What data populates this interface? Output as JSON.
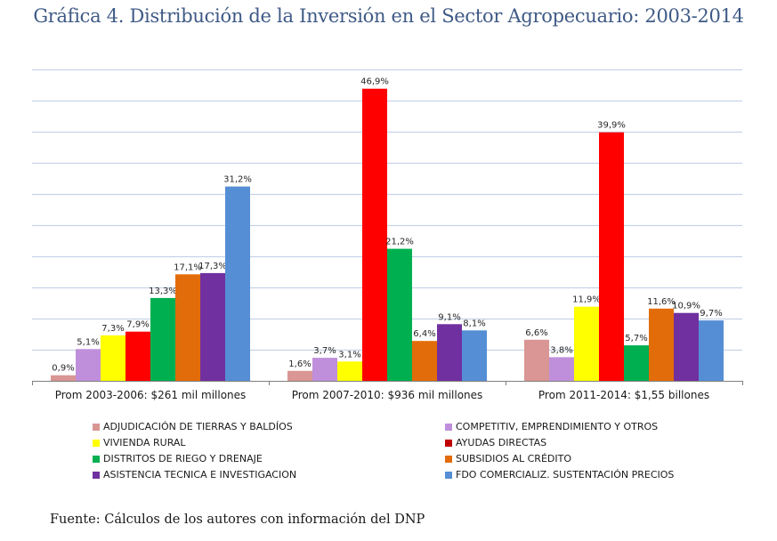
{
  "title": "Gráfica 4. Distribución de la Inversión en el Sector Agropecuario: 2003-2014",
  "source": "Fuente: Cálculos de los autores con información del DNP",
  "chart_data": {
    "type": "bar",
    "title": "Gráfica 4. Distribución de la Inversión en el Sector Agropecuario: 2003-2014",
    "xlabel": "",
    "ylabel": "",
    "ylim": [
      0,
      50
    ],
    "ytick_step": 5,
    "y_tick_labels_visible": false,
    "grid": true,
    "legend_position": "bottom",
    "categories": [
      "Prom 2003-2006: $261 mil millones",
      "Prom 2007-2010: $936 mil millones",
      "Prom 2011-2014: $1,55 billones"
    ],
    "series": [
      {
        "name": "ADJUDICACIÓN DE TIERRAS Y BALDÍOS",
        "color": "#d99694",
        "values": [
          0.9,
          1.6,
          6.6
        ],
        "labels": [
          "0,9%",
          "1,6%",
          "6,6%"
        ]
      },
      {
        "name": "COMPETITIV, EMPRENDIMIENTO Y OTROS",
        "color": "#c08fdb",
        "values": [
          5.1,
          3.7,
          3.8
        ],
        "labels": [
          "5,1%",
          "3,7%",
          "3,8%"
        ]
      },
      {
        "name": "VIVIENDA RURAL",
        "color": "#ffff00",
        "values": [
          7.3,
          3.1,
          11.9
        ],
        "labels": [
          "7,3%",
          "3,1%",
          "11,9%"
        ]
      },
      {
        "name": "AYUDAS DIRECTAS",
        "color": "#ff0000",
        "values": [
          7.9,
          46.9,
          39.9
        ],
        "labels": [
          "7,9%",
          "46,9%",
          "39,9%"
        ]
      },
      {
        "name": "DISTRITOS DE RIEGO Y DRENAJE",
        "color": "#00b050",
        "values": [
          13.3,
          21.2,
          5.7
        ],
        "labels": [
          "13,3%",
          "21,2%",
          "5,7%"
        ]
      },
      {
        "name": "SUBSIDIOS AL CRÉDITO",
        "color": "#e36c0a",
        "values": [
          17.1,
          6.4,
          11.6
        ],
        "labels": [
          "17,1%",
          "6,4%",
          "11,6%"
        ]
      },
      {
        "name": "ASISTENCIA TECNICA E INVESTIGACION",
        "color": "#7030a0",
        "values": [
          17.3,
          9.1,
          10.9
        ],
        "labels": [
          "17,3%",
          "9,1%",
          "10,9%"
        ]
      },
      {
        "name": "FDO COMERCIALIZ. SUSTENTACIÓN PRECIOS",
        "color": "#558ed5",
        "values": [
          31.2,
          8.1,
          9.7
        ],
        "labels": [
          "31,2%",
          "8,1%",
          "9,7%"
        ]
      }
    ],
    "legend_swatch_colors": {
      "AYUDAS DIRECTAS": "#c00000"
    },
    "gridline_color": "#c6d3e8",
    "axis_color": "#808080"
  }
}
